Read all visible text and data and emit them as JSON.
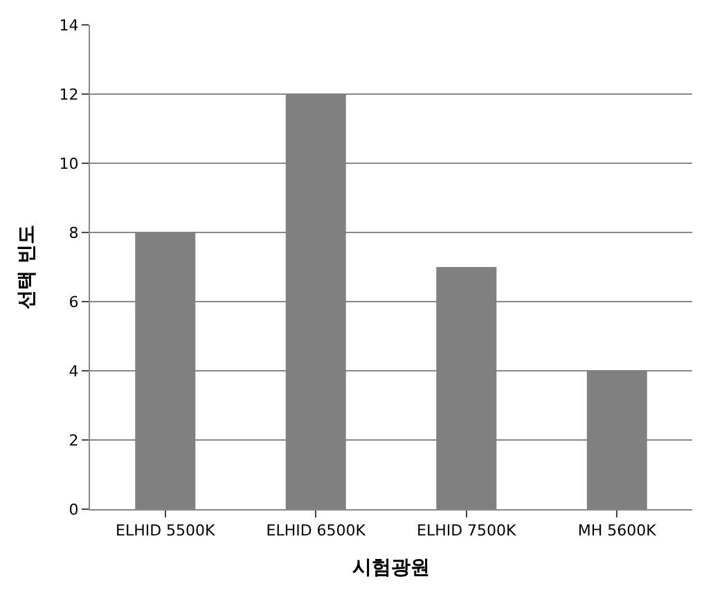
{
  "chart_data": {
    "type": "bar",
    "xlabel": "시험광원",
    "ylabel": "선택 빈도",
    "categories": [
      "ELHID 5500K",
      "ELHID 6500K",
      "ELHID 7500K",
      "MH 5600K"
    ],
    "values": [
      8,
      12,
      7,
      4
    ],
    "color": "#808080",
    "ylim": [
      0,
      14
    ],
    "yticks": [
      0,
      2,
      4,
      6,
      8,
      10,
      12,
      14
    ],
    "grid": "y"
  }
}
